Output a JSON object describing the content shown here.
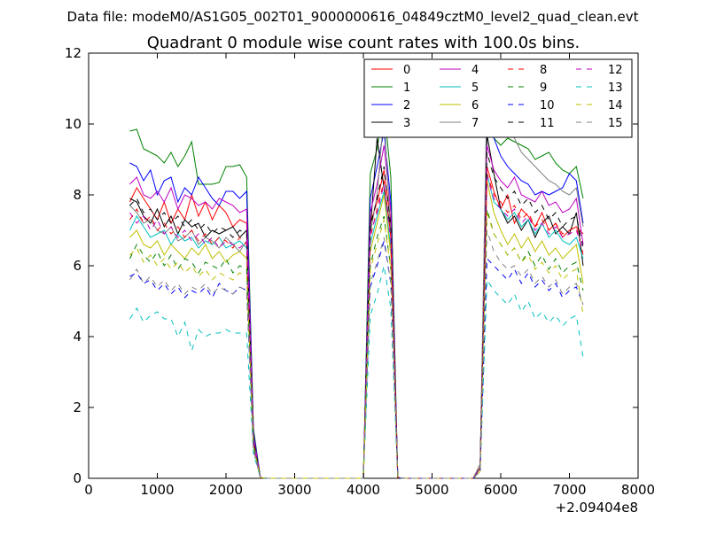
{
  "suptitle": "Data file: modeM0/AS1G05_002T01_9000000616_04849cztM0_level2_quad_clean.evt",
  "chart_data": {
    "type": "line",
    "title": "Quadrant 0 module wise count rates with 100.0s bins.",
    "xlabel": "",
    "ylabel": "",
    "x_offset_label": "+2.09404e8",
    "xlim": [
      0,
      8000
    ],
    "ylim": [
      0,
      12
    ],
    "x_ticks": [
      0,
      1000,
      2000,
      3000,
      4000,
      5000,
      6000,
      7000,
      8000
    ],
    "y_ticks": [
      0,
      2,
      4,
      6,
      8,
      10,
      12
    ],
    "grid": false,
    "legend_position": "top-right",
    "legend_columns": 4,
    "x": [
      600,
      700,
      800,
      900,
      1000,
      1100,
      1200,
      1300,
      1400,
      1500,
      1600,
      1700,
      1800,
      1900,
      2000,
      2100,
      2200,
      2300,
      2400,
      2500,
      2600,
      2700,
      2800,
      2900,
      3000,
      3100,
      3200,
      3300,
      3400,
      3500,
      3600,
      3700,
      3800,
      3900,
      4000,
      4100,
      4200,
      4300,
      4400,
      4500,
      4600,
      4700,
      4800,
      4900,
      5000,
      5100,
      5200,
      5300,
      5400,
      5500,
      5600,
      5700,
      5800,
      5900,
      6000,
      6100,
      6200,
      6300,
      6400,
      6500,
      6600,
      6700,
      6800,
      6900,
      7000,
      7100,
      7200
    ],
    "series": [
      {
        "name": "0",
        "color": "#ff0000",
        "dash": "solid",
        "values": [
          7.8,
          8.2,
          7.9,
          7.6,
          7.3,
          7.8,
          7.2,
          7.6,
          7.3,
          8.0,
          7.4,
          7.8,
          7.3,
          7.7,
          7.5,
          7.1,
          7.3,
          7.2,
          1.2,
          0.02,
          0,
          0,
          0,
          0,
          0,
          0,
          0,
          0,
          0,
          0,
          0,
          0,
          0,
          0,
          0,
          7.2,
          7.8,
          8.7,
          7.2,
          0.02,
          0,
          0,
          0,
          0,
          0,
          0,
          0,
          0,
          0,
          0,
          0,
          0.3,
          8.8,
          8.1,
          7.6,
          8.0,
          7.2,
          7.6,
          7.4,
          7.1,
          7.5,
          7.0,
          7.2,
          6.8,
          7.0,
          7.1,
          6.9
        ]
      },
      {
        "name": "1",
        "color": "#008000",
        "dash": "solid",
        "values": [
          9.8,
          9.85,
          9.3,
          9.2,
          9.1,
          8.9,
          9.2,
          8.8,
          9.1,
          9.5,
          8.3,
          8.3,
          8.3,
          8.35,
          8.8,
          8.8,
          8.85,
          8.5,
          1.4,
          0.02,
          0,
          0,
          0,
          0,
          0,
          0,
          0,
          0,
          0,
          0,
          0,
          0,
          0,
          0,
          0,
          8.6,
          9.3,
          10.5,
          8.5,
          0.02,
          0,
          0,
          0,
          0,
          0,
          0,
          0,
          0,
          0,
          0,
          0,
          0.4,
          9.8,
          9.6,
          9.4,
          9.6,
          9.5,
          9.4,
          9.3,
          9.0,
          9.1,
          9.2,
          8.9,
          8.7,
          8.6,
          8.8,
          7.9
        ]
      },
      {
        "name": "2",
        "color": "#0000ff",
        "dash": "solid",
        "values": [
          8.9,
          8.8,
          8.4,
          8.7,
          8.0,
          8.4,
          8.5,
          7.8,
          8.2,
          8.0,
          8.5,
          8.2,
          7.9,
          7.7,
          8.1,
          8.1,
          7.9,
          8.1,
          1.3,
          0.02,
          0,
          0,
          0,
          0,
          0,
          0,
          0,
          0,
          0,
          0,
          0,
          0,
          0,
          0,
          0,
          7.9,
          8.8,
          9.8,
          7.8,
          0.02,
          0,
          0,
          0,
          0,
          0,
          0,
          0,
          0,
          0,
          0,
          0,
          0.3,
          10.2,
          9.6,
          9.1,
          8.8,
          8.6,
          8.4,
          8.3,
          8.0,
          8.1,
          8.0,
          8.1,
          8.2,
          8.6,
          8.4,
          7.2
        ]
      },
      {
        "name": "3",
        "color": "#000000",
        "dash": "solid",
        "values": [
          7.9,
          7.8,
          7.4,
          7.2,
          7.6,
          7.1,
          7.4,
          6.9,
          7.3,
          7.1,
          7.2,
          6.8,
          7.0,
          6.9,
          7.0,
          7.1,
          6.8,
          7.0,
          1.1,
          0.02,
          0,
          0,
          0,
          0,
          0,
          0,
          0,
          0,
          0,
          0,
          0,
          0,
          0,
          0,
          0,
          7.0,
          9.6,
          8.2,
          7.0,
          0.02,
          0,
          0,
          0,
          0,
          0,
          0,
          0,
          0,
          0,
          0,
          0,
          0.3,
          9.7,
          8.6,
          7.6,
          7.2,
          7.4,
          7.0,
          7.3,
          6.8,
          7.2,
          7.4,
          6.9,
          7.1,
          6.9,
          7.5,
          6.0
        ]
      },
      {
        "name": "4",
        "color": "#bf00bf",
        "dash": "solid",
        "values": [
          8.3,
          8.5,
          8.0,
          7.9,
          8.1,
          7.8,
          8.2,
          7.6,
          8.0,
          7.9,
          7.7,
          7.8,
          7.6,
          7.9,
          7.8,
          7.7,
          7.5,
          7.6,
          1.2,
          0.02,
          0,
          0,
          0,
          0,
          0,
          0,
          0,
          0,
          0,
          0,
          0,
          0,
          0,
          0,
          0,
          7.5,
          8.3,
          9.4,
          7.5,
          0.02,
          0,
          0,
          0,
          0,
          0,
          0,
          0,
          0,
          0,
          0,
          0,
          0.3,
          9.4,
          8.7,
          8.4,
          8.2,
          8.5,
          8.0,
          7.9,
          7.8,
          8.1,
          7.7,
          7.8,
          7.5,
          7.6,
          7.9,
          6.6
        ]
      },
      {
        "name": "5",
        "color": "#00bfbf",
        "dash": "solid",
        "values": [
          7.0,
          7.4,
          7.1,
          6.8,
          6.9,
          7.0,
          6.6,
          6.9,
          6.7,
          6.8,
          6.5,
          6.7,
          6.6,
          6.8,
          6.5,
          6.6,
          6.7,
          6.5,
          1.0,
          0.02,
          0,
          0,
          0,
          0,
          0,
          0,
          0,
          0,
          0,
          0,
          0,
          0,
          0,
          0,
          0,
          6.6,
          7.4,
          8.1,
          6.5,
          0.02,
          0,
          0,
          0,
          0,
          0,
          0,
          0,
          0,
          0,
          0,
          0,
          0.3,
          8.6,
          7.8,
          7.6,
          7.3,
          7.5,
          7.1,
          7.3,
          6.9,
          7.2,
          6.8,
          7.0,
          6.7,
          6.6,
          6.8,
          6.2
        ]
      },
      {
        "name": "6",
        "color": "#bfbf00",
        "dash": "solid",
        "values": [
          6.8,
          7.0,
          6.6,
          6.5,
          6.7,
          6.3,
          6.6,
          6.4,
          6.2,
          6.5,
          6.3,
          6.6,
          6.2,
          6.4,
          6.1,
          6.3,
          6.4,
          6.2,
          1.0,
          0.02,
          0,
          0,
          0,
          0,
          0,
          0,
          0,
          0,
          0,
          0,
          0,
          0,
          0,
          0,
          0,
          6.4,
          7.2,
          8.0,
          6.3,
          0.02,
          0,
          0,
          0,
          0,
          0,
          0,
          0,
          0,
          0,
          0,
          0,
          0.2,
          8.4,
          7.5,
          7.0,
          6.6,
          6.9,
          6.5,
          6.8,
          6.4,
          6.7,
          6.3,
          6.5,
          6.2,
          6.4,
          6.6,
          5.5
        ]
      },
      {
        "name": "7",
        "color": "#808080",
        "dash": "solid",
        "values": [
          7.7,
          7.5,
          7.2,
          7.3,
          7.0,
          6.9,
          7.1,
          6.7,
          6.8,
          7.0,
          6.6,
          6.8,
          6.7,
          6.5,
          6.8,
          6.6,
          6.4,
          6.7,
          1.0,
          0.02,
          0,
          0,
          0,
          0,
          0,
          0,
          0,
          0,
          0,
          0,
          0,
          0,
          0,
          0,
          0,
          6.9,
          8.0,
          10.3,
          6.8,
          0.02,
          0,
          0,
          0,
          0,
          0,
          0,
          0,
          0,
          0,
          0,
          0,
          0.4,
          11.1,
          10.2,
          9.7,
          9.9,
          9.6,
          9.2,
          9.0,
          8.8,
          8.6,
          8.4,
          8.3,
          8.1,
          8.0,
          8.2,
          7.1
        ]
      },
      {
        "name": "8",
        "color": "#ff0000",
        "dash": "dashed",
        "values": [
          7.3,
          7.6,
          7.2,
          7.4,
          7.0,
          7.2,
          6.9,
          7.1,
          6.8,
          7.0,
          6.7,
          6.9,
          6.6,
          6.8,
          6.7,
          6.5,
          6.8,
          6.6,
          1.0,
          0.02,
          0,
          0,
          0,
          0,
          0,
          0,
          0,
          0,
          0,
          0,
          0,
          0,
          0,
          0,
          0,
          6.8,
          7.6,
          8.4,
          6.8,
          0.02,
          0,
          0,
          0,
          0,
          0,
          0,
          0,
          0,
          0,
          0,
          0,
          0.3,
          8.6,
          8.0,
          7.8,
          7.5,
          7.7,
          7.3,
          7.5,
          7.1,
          7.3,
          7.0,
          7.2,
          6.9,
          7.0,
          7.1,
          6.3
        ]
      },
      {
        "name": "9",
        "color": "#008000",
        "dash": "dashed",
        "values": [
          6.2,
          6.6,
          6.3,
          6.1,
          6.4,
          6.0,
          6.3,
          5.9,
          6.2,
          6.1,
          5.8,
          6.1,
          6.0,
          5.9,
          6.2,
          5.8,
          6.0,
          5.9,
          0.9,
          0.02,
          0,
          0,
          0,
          0,
          0,
          0,
          0,
          0,
          0,
          0,
          0,
          0,
          0,
          0,
          0,
          6.0,
          6.8,
          7.4,
          5.9,
          0.02,
          0,
          0,
          0,
          0,
          0,
          0,
          0,
          0,
          0,
          0,
          0,
          0.2,
          7.6,
          6.9,
          6.6,
          6.3,
          6.5,
          6.1,
          6.4,
          6.0,
          6.3,
          5.9,
          6.2,
          5.8,
          6.0,
          6.1,
          5.3
        ]
      },
      {
        "name": "10",
        "color": "#0000ff",
        "dash": "dashed",
        "values": [
          5.7,
          5.8,
          5.5,
          5.6,
          5.3,
          5.5,
          5.2,
          5.4,
          5.1,
          5.3,
          5.2,
          5.4,
          5.1,
          5.5,
          5.3,
          5.2,
          5.4,
          5.3,
          0.8,
          0.02,
          0,
          0,
          0,
          0,
          0,
          0,
          0,
          0,
          0,
          0,
          0,
          0,
          0,
          0,
          0,
          5.4,
          6.0,
          6.7,
          5.5,
          0.02,
          0,
          0,
          0,
          0,
          0,
          0,
          0,
          0,
          0,
          0,
          0,
          0.2,
          6.2,
          6.0,
          5.8,
          5.6,
          5.9,
          5.5,
          5.8,
          5.4,
          5.6,
          5.3,
          5.5,
          5.1,
          5.3,
          5.4,
          4.9
        ]
      },
      {
        "name": "11",
        "color": "#000000",
        "dash": "dashed",
        "values": [
          7.7,
          7.9,
          7.5,
          7.6,
          7.3,
          7.5,
          7.2,
          7.4,
          7.1,
          7.3,
          7.0,
          7.2,
          6.9,
          7.1,
          7.0,
          6.8,
          7.0,
          6.9,
          1.1,
          0.02,
          0,
          0,
          0,
          0,
          0,
          0,
          0,
          0,
          0,
          0,
          0,
          0,
          0,
          0,
          0,
          7.1,
          7.9,
          8.8,
          7.1,
          0.02,
          0,
          0,
          0,
          0,
          0,
          0,
          0,
          0,
          0,
          0,
          0,
          0.3,
          9.2,
          8.5,
          8.2,
          7.9,
          8.1,
          7.7,
          7.9,
          7.5,
          7.7,
          7.3,
          7.5,
          7.1,
          7.3,
          7.4,
          6.5
        ]
      },
      {
        "name": "12",
        "color": "#bf00bf",
        "dash": "dashed",
        "values": [
          7.5,
          7.2,
          7.4,
          7.0,
          7.3,
          6.9,
          7.1,
          6.8,
          7.0,
          6.7,
          6.9,
          6.6,
          6.8,
          6.5,
          6.7,
          6.6,
          6.5,
          6.7,
          1.0,
          0.02,
          0,
          0,
          0,
          0,
          0,
          0,
          0,
          0,
          0,
          0,
          0,
          0,
          0,
          0,
          0,
          6.9,
          7.5,
          8.3,
          6.7,
          0.02,
          0,
          0,
          0,
          0,
          0,
          0,
          0,
          0,
          0,
          0,
          0,
          0.3,
          8.5,
          7.9,
          7.6,
          7.4,
          7.6,
          7.2,
          7.4,
          7.0,
          7.2,
          6.9,
          7.1,
          6.8,
          6.9,
          7.0,
          6.4
        ]
      },
      {
        "name": "13",
        "color": "#00bfbf",
        "dash": "dashed",
        "values": [
          4.5,
          4.8,
          4.4,
          4.6,
          4.7,
          4.5,
          4.5,
          4.0,
          4.4,
          3.6,
          4.2,
          4.0,
          4.1,
          4.1,
          4.2,
          4.1,
          4.1,
          4.1,
          0.7,
          0.02,
          0,
          0,
          0,
          0,
          0,
          0,
          0,
          0,
          0,
          0,
          0,
          0,
          0,
          0,
          0,
          4.6,
          5.2,
          6.0,
          4.8,
          0.02,
          0,
          0,
          0,
          0,
          0,
          0,
          0,
          0,
          0,
          0,
          0,
          0.2,
          5.6,
          5.3,
          5.1,
          4.9,
          5.2,
          4.7,
          5.0,
          4.5,
          4.7,
          4.4,
          4.6,
          4.3,
          4.5,
          4.6,
          3.4
        ]
      },
      {
        "name": "14",
        "color": "#bfbf00",
        "dash": "dashed",
        "values": [
          6.3,
          6.5,
          6.1,
          6.3,
          6.0,
          6.2,
          5.9,
          6.1,
          5.8,
          6.0,
          5.7,
          5.9,
          5.6,
          5.8,
          5.7,
          5.6,
          5.8,
          5.7,
          0.9,
          0.02,
          0,
          0,
          0,
          0,
          0,
          0,
          0,
          0,
          0,
          0,
          0,
          0,
          0,
          0,
          0,
          5.9,
          6.6,
          7.3,
          5.9,
          0.02,
          0,
          0,
          0,
          0,
          0,
          0,
          0,
          0,
          0,
          0,
          0,
          0.2,
          7.5,
          6.9,
          6.6,
          6.3,
          6.5,
          6.1,
          6.3,
          5.9,
          6.1,
          5.8,
          6.0,
          5.6,
          5.8,
          5.9,
          4.6
        ]
      },
      {
        "name": "15",
        "color": "#808080",
        "dash": "dashed",
        "values": [
          5.6,
          5.9,
          5.5,
          5.7,
          5.4,
          5.6,
          5.3,
          5.5,
          5.2,
          5.4,
          5.3,
          5.5,
          5.2,
          5.4,
          5.3,
          5.2,
          5.4,
          5.3,
          0.8,
          0.02,
          0,
          0,
          0,
          0,
          0,
          0,
          0,
          0,
          0,
          0,
          0,
          0,
          0,
          0,
          0,
          5.5,
          6.1,
          6.8,
          5.5,
          0.02,
          0,
          0,
          0,
          0,
          0,
          0,
          0,
          0,
          0,
          0,
          0,
          0.2,
          7.0,
          6.4,
          6.1,
          5.9,
          6.0,
          5.7,
          5.9,
          5.5,
          5.7,
          5.4,
          5.6,
          5.2,
          5.4,
          5.5,
          4.9
        ]
      }
    ]
  }
}
